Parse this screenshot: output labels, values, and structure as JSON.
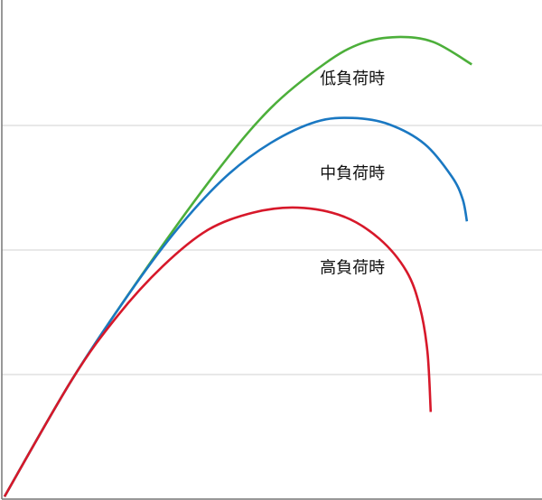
{
  "chart_data": {
    "type": "line",
    "title": "",
    "xlabel": "",
    "ylabel": "",
    "xlim": [
      0,
      100
    ],
    "ylim": [
      0,
      4
    ],
    "grid": {
      "horizontal": true,
      "y_gridlines": [
        1,
        2,
        3
      ]
    },
    "legend": "none",
    "series": [
      {
        "name": "低負荷時",
        "color": "#4caf3a",
        "points": [
          [
            0.5,
            0.02
          ],
          [
            13.0,
            0.96
          ],
          [
            26.4,
            1.83
          ],
          [
            39.8,
            2.63
          ],
          [
            49.8,
            3.14
          ],
          [
            59.9,
            3.5
          ],
          [
            66.6,
            3.66
          ],
          [
            73.2,
            3.71
          ],
          [
            79.9,
            3.67
          ],
          [
            87.0,
            3.49
          ]
        ],
        "label_at": [
          64.9,
          3.37
        ]
      },
      {
        "name": "中負荷時",
        "color": "#1a78c2",
        "points": [
          [
            0.5,
            0.02
          ],
          [
            13.0,
            0.96
          ],
          [
            24.7,
            1.72
          ],
          [
            33.1,
            2.2
          ],
          [
            41.5,
            2.59
          ],
          [
            49.8,
            2.86
          ],
          [
            58.2,
            3.03
          ],
          [
            64.9,
            3.06
          ],
          [
            71.6,
            3.01
          ],
          [
            78.3,
            2.85
          ],
          [
            83.3,
            2.59
          ],
          [
            85.3,
            2.41
          ],
          [
            86.1,
            2.23
          ]
        ],
        "label_at": [
          64.9,
          2.61
        ]
      },
      {
        "name": "高負荷時",
        "color": "#d7182a",
        "points": [
          [
            0.5,
            0.02
          ],
          [
            13.0,
            0.96
          ],
          [
            21.4,
            1.47
          ],
          [
            29.8,
            1.87
          ],
          [
            38.1,
            2.16
          ],
          [
            46.5,
            2.3
          ],
          [
            54.8,
            2.34
          ],
          [
            63.2,
            2.27
          ],
          [
            69.9,
            2.09
          ],
          [
            74.9,
            1.83
          ],
          [
            77.4,
            1.54
          ],
          [
            78.8,
            1.18
          ],
          [
            79.4,
            0.7
          ]
        ],
        "label_at": [
          64.9,
          1.85
        ]
      }
    ]
  }
}
